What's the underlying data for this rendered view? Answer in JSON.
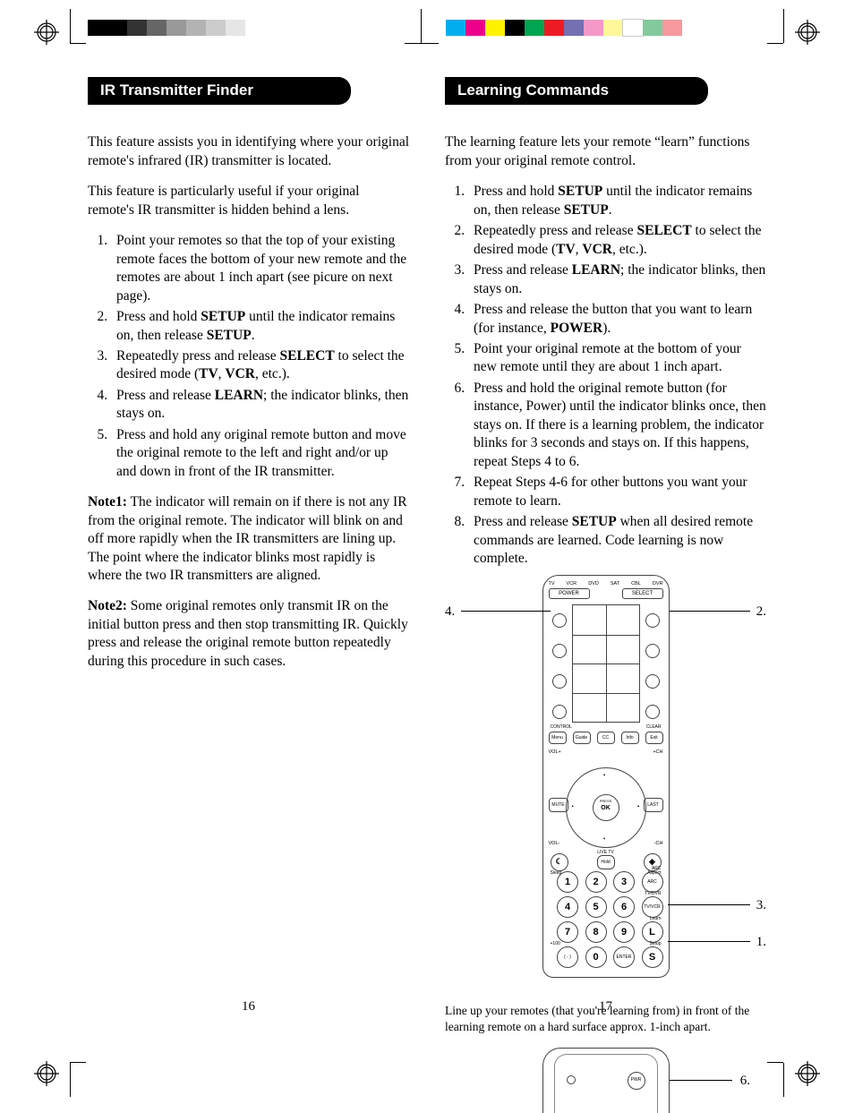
{
  "print_marks": {
    "left_gray_swatches": [
      "#000000",
      "#000000",
      "#333333",
      "#666666",
      "#999999",
      "#b3b3b3",
      "#cccccc",
      "#e6e6e6"
    ],
    "right_color_swatches": [
      "#00aeef",
      "#ec008c",
      "#fff200",
      "#000000",
      "#00a651",
      "#ed1c24",
      "#7570b2",
      "#f499c8",
      "#fff799",
      "#ffffff",
      "#82ca9c",
      "#f6989d"
    ],
    "registration_color": "#000000"
  },
  "left": {
    "heading": "IR Transmitter Finder",
    "para1": "This feature assists you in identifying where your original remote's infrared (IR) transmitter is located.",
    "para2": "This feature is particularly useful if your original remote's IR transmitter is hidden behind a lens.",
    "steps": [
      {
        "pre": "Point your remotes so that the top of your existing remote faces the bottom of your new remote and the remotes are about 1 inch apart (see picure on next page)."
      },
      {
        "pre": "Press and hold ",
        "b1": "SETUP",
        "mid": " until the indicator remains on, then release ",
        "b2": "SETUP",
        "post": "."
      },
      {
        "pre": "Repeatedly press and release ",
        "b1": "SELECT",
        "mid": " to select the desired mode (",
        "b2": "TV",
        "mid2": ", ",
        "b3": "VCR",
        "post": ", etc.)."
      },
      {
        "pre": "Press and release ",
        "b1": "LEARN",
        "post": "; the indicator blinks, then stays on."
      },
      {
        "pre": "Press and hold any original remote button and move the original remote to the left and right and/or up and down in front of the IR transmitter."
      }
    ],
    "note1_label": "Note1:",
    "note1": " The indicator will remain on if there is not any IR from the original remote. The indicator will blink on and off more rapidly when the IR transmitters are lining up. The point where the indicator blinks most rapidly is where the two IR transmitters are aligned.",
    "note2_label": "Note2:",
    "note2": " Some original remotes only transmit IR on the initial button press and then stop transmitting IR. Quickly press and release the original remote button repeatedly during this procedure in such cases.",
    "page_num": "16"
  },
  "right": {
    "heading": "Learning Commands",
    "para1": "The learning feature lets your remote “learn” functions from your original remote control.",
    "steps": [
      {
        "pre": "Press and hold ",
        "b1": "SETUP",
        "mid": " until the indicator remains on, then release ",
        "b2": "SETUP",
        "post": "."
      },
      {
        "pre": "Repeatedly press and release ",
        "b1": "SELECT",
        "mid": " to select the desired mode (",
        "b2": "TV",
        "mid2": ", ",
        "b3": "VCR",
        "post": ", etc.)."
      },
      {
        "pre": "Press and release ",
        "b1": "LEARN",
        "post": "; the indicator blinks, then stays on."
      },
      {
        "pre": "Press and release the button that you want to learn (for instance, ",
        "b1": "POWER",
        "post": ")."
      },
      {
        "pre": "Point your original remote at the bottom of your new remote until they are about 1 inch apart."
      },
      {
        "pre": "Press and hold the original remote button (for instance, Power) until the indicator blinks once, then stays on. If there is a learning problem, the indicator blinks for 3 seconds and stays on. If this happens, repeat Steps 4 to 6."
      },
      {
        "pre": "Repeat Steps 4-6 for other buttons you want your remote to learn."
      },
      {
        "pre": "Press and release ",
        "b1": "SETUP",
        "post": " when all desired remote commands are learned. Code learning is now complete."
      }
    ],
    "remote": {
      "modes": [
        "TV",
        "VCR",
        "DVD",
        "SAT",
        "CBL",
        "DVR"
      ],
      "power": "POWER",
      "select": "SELECT",
      "row_labels": {
        "control": "CONTROL",
        "clear": "CLEAR"
      },
      "mid_buttons": [
        "Menu",
        "Guide",
        "CC",
        "Info",
        "Exit"
      ],
      "vol_plus": "VOL+",
      "vol_minus": "VOL-",
      "ch_plus": "+CH",
      "ch_minus": "-CH",
      "mute": "MUTE",
      "last": "LAST",
      "ok_small": "PRESS",
      "ok": "OK",
      "liveTV": "LIVE TV",
      "sleep": "Sleep",
      "aspect": "Aspect",
      "numbers": [
        [
          "1",
          "2",
          "3"
        ],
        [
          "4",
          "5",
          "6"
        ],
        [
          "7",
          "8",
          "9"
        ],
        [
          "( - )",
          "0",
          "ENTER"
        ]
      ],
      "side_labels": {
        "arc": "ARC",
        "tvdvr": "TV/DVR",
        "tvvcr": "TV/VCR",
        "learn": "Learn",
        "setup": "Setup",
        "plus100": "+100"
      },
      "side_btns": {
        "arc": "ARC",
        "tvvcr": "TV/VCR",
        "L": "L",
        "S": "S",
        "hold": "Hold"
      },
      "callouts": {
        "1": "1.",
        "2": "2.",
        "3": "3.",
        "4": "4.",
        "6": "6."
      }
    },
    "caption": "Line up your remotes (that you're learning from) in front of the learning remote on a hard surface approx. 1-inch apart.",
    "second_remote_pwr": "PWR",
    "page_num": "17"
  }
}
